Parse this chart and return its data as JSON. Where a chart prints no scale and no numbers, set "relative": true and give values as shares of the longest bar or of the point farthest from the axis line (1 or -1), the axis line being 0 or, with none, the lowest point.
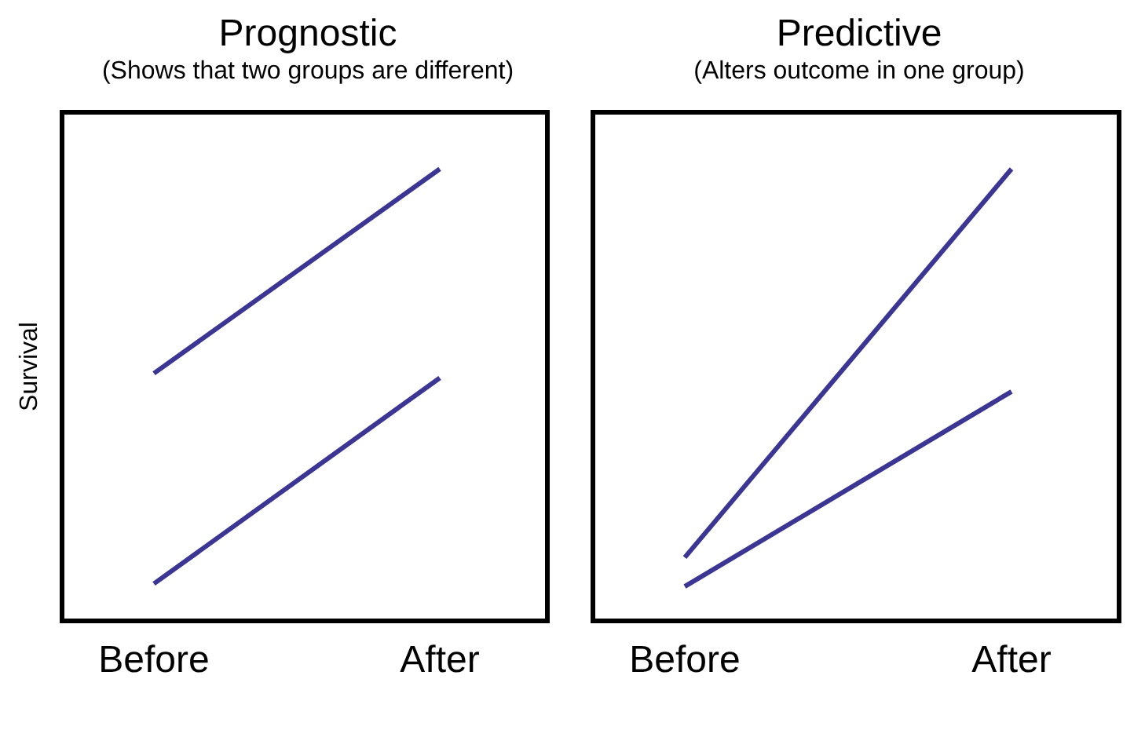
{
  "chart_data": [
    {
      "type": "line",
      "title": "Prognostic",
      "subtitle": "(Shows that two groups are different)",
      "ylabel": "Survival",
      "relative": true,
      "categories": [
        "Before",
        "After"
      ],
      "legend": false,
      "grid": false,
      "marker": "none",
      "series": [
        {
          "color": "#3b3593",
          "values": [
            0.55,
            1
          ]
        },
        {
          "color": "#3b3593",
          "values": [
            0.087,
            0.54
          ]
        }
      ]
    },
    {
      "type": "line",
      "title": "Predictive",
      "subtitle": "(Alters outcome in one group)",
      "relative": true,
      "categories": [
        "Before",
        "After"
      ],
      "legend": false,
      "grid": false,
      "marker": "none",
      "series": [
        {
          "color": "#3b3593",
          "values": [
            0.145,
            1
          ]
        },
        {
          "color": "#3b3593",
          "values": [
            0.081,
            0.51
          ]
        }
      ]
    }
  ]
}
